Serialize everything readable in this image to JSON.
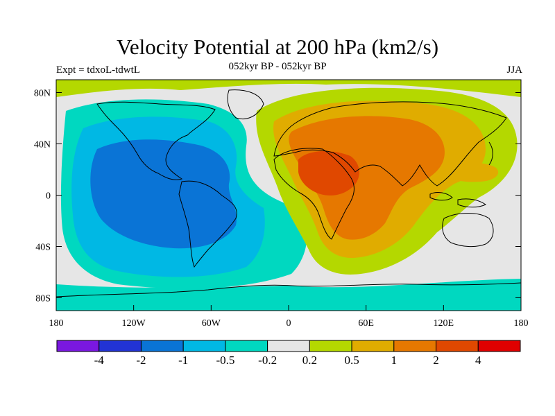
{
  "header": {
    "title": "Velocity Potential at 200 hPa (km2/s)",
    "subtitle": "052kyr BP - 052kyr BP",
    "left_label": "Expt = tdxoL-tdwtL",
    "right_label": "JJA"
  },
  "map": {
    "lon_range": [
      -180,
      180
    ],
    "lat_range": [
      -90,
      90
    ],
    "x_ticks": [
      {
        "value": -180,
        "label": "180"
      },
      {
        "value": -120,
        "label": "120W"
      },
      {
        "value": -60,
        "label": "60W"
      },
      {
        "value": 0,
        "label": "0"
      },
      {
        "value": 60,
        "label": "60E"
      },
      {
        "value": 120,
        "label": "120E"
      },
      {
        "value": 180,
        "label": "180"
      }
    ],
    "y_ticks": [
      {
        "value": 80,
        "label": "80N"
      },
      {
        "value": 40,
        "label": "40N"
      },
      {
        "value": 0,
        "label": "0"
      },
      {
        "value": -40,
        "label": "40S"
      },
      {
        "value": -80,
        "label": "80S"
      }
    ]
  },
  "colorbar": {
    "colors": [
      "#7a18e0",
      "#2233d4",
      "#0a74d6",
      "#00b8e4",
      "#00d8c0",
      "#e6e6e6",
      "#b4d800",
      "#e0ac00",
      "#e67800",
      "#e04800",
      "#e00000"
    ],
    "labels": [
      "-4",
      "-2",
      "-1",
      "-0.5",
      "-0.2",
      "0.2",
      "0.5",
      "1",
      "2",
      "4"
    ]
  }
}
